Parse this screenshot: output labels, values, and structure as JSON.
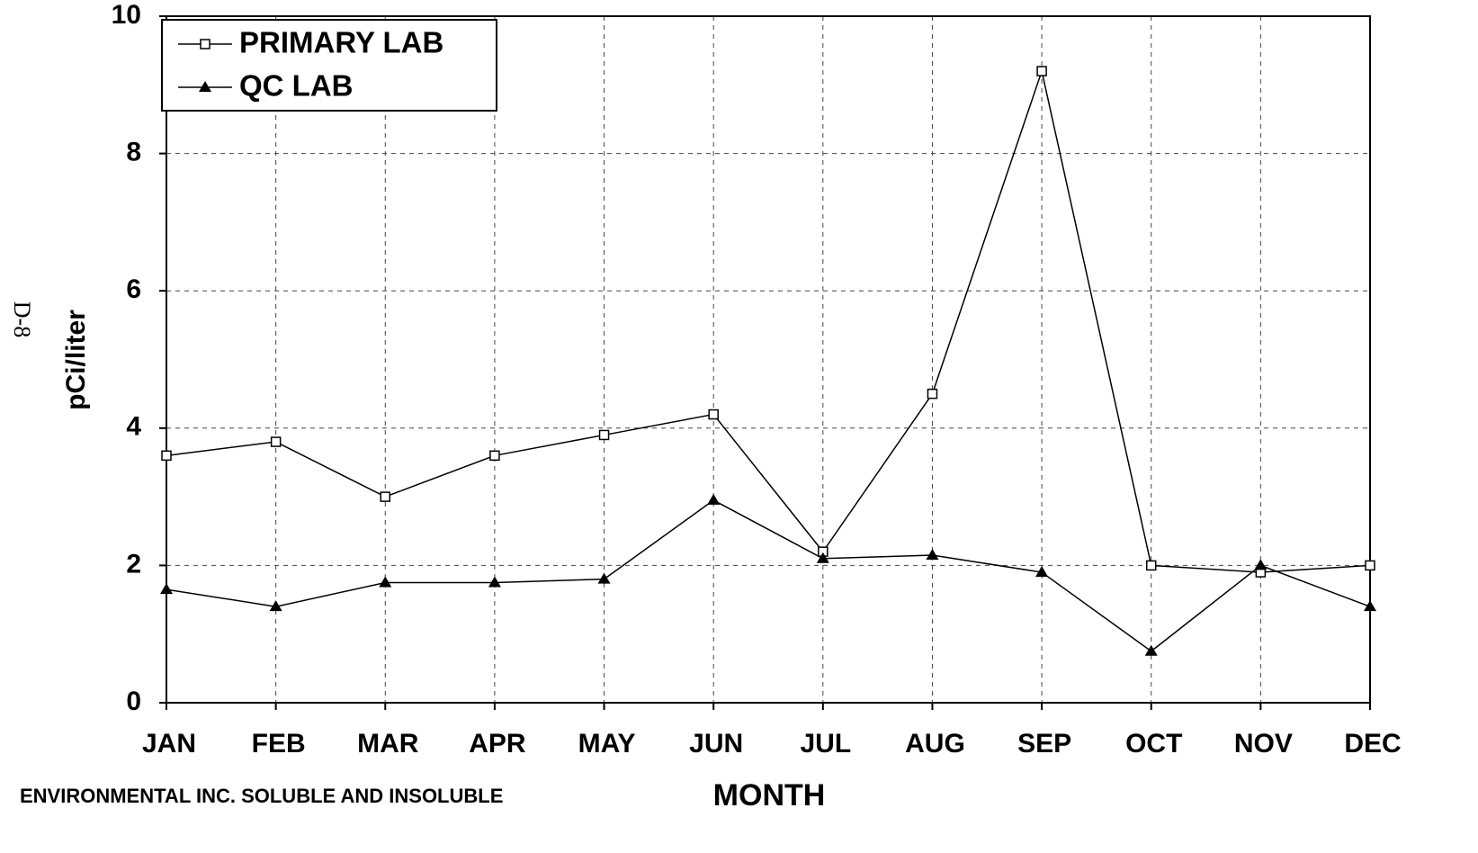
{
  "chart_data": {
    "type": "line",
    "categories": [
      "JAN",
      "FEB",
      "MAR",
      "APR",
      "MAY",
      "JUN",
      "JUL",
      "AUG",
      "SEP",
      "OCT",
      "NOV",
      "DEC"
    ],
    "series": [
      {
        "name": "PRIMARY LAB",
        "color": "#000000",
        "marker": "square",
        "values": [
          3.6,
          3.8,
          3.0,
          3.6,
          3.9,
          4.2,
          2.2,
          4.5,
          9.2,
          2.0,
          1.9,
          2.0
        ]
      },
      {
        "name": "QC LAB",
        "color": "#000000",
        "marker": "triangle",
        "values": [
          1.65,
          1.4,
          1.75,
          1.75,
          1.8,
          2.95,
          2.1,
          2.15,
          1.9,
          0.75,
          2.0,
          1.4
        ]
      }
    ],
    "ylim": [
      0,
      10
    ],
    "yticks": [
      0,
      2,
      4,
      6,
      8,
      10
    ],
    "grid": true,
    "ylabel": "pCi/liter",
    "xlabel": "MONTH",
    "annotations": [
      "ENVIRONMENTAL INC. SOLUBLE AND INSOLUBLE",
      "D-8"
    ],
    "legend": "upper left"
  }
}
